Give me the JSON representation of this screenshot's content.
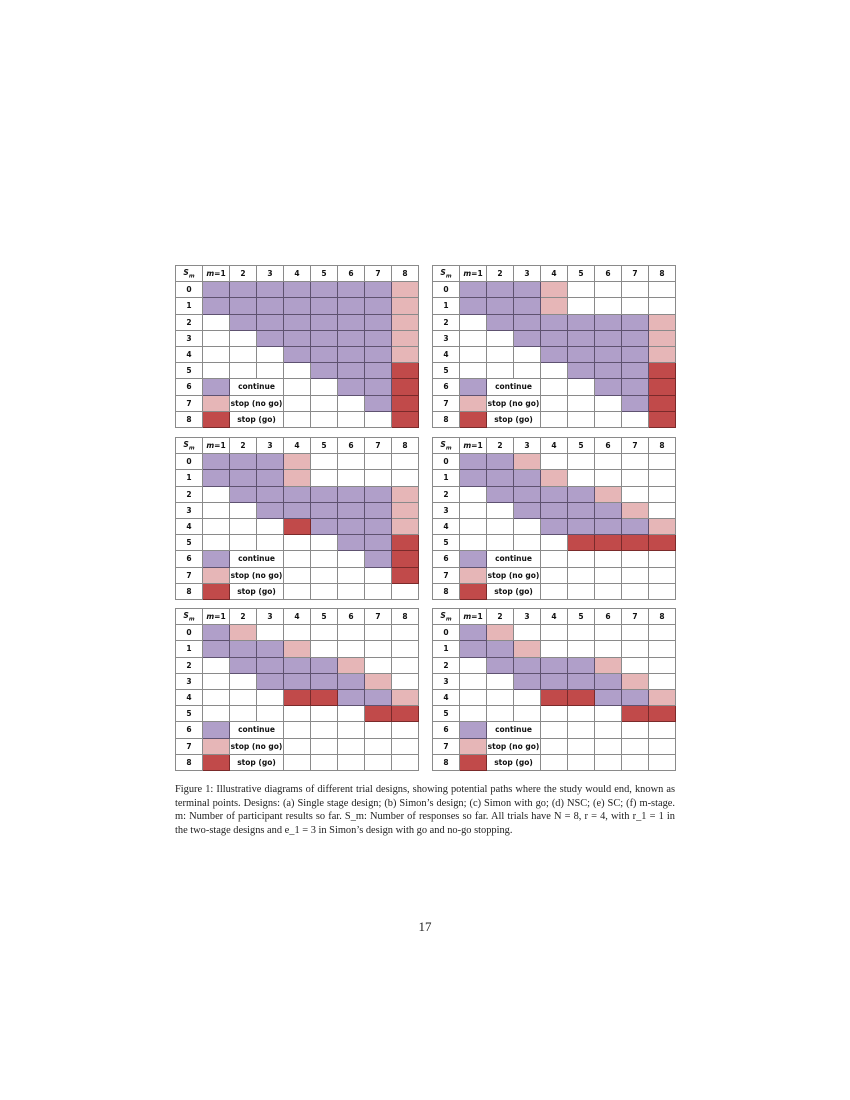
{
  "header": {
    "sm_var": "S",
    "sm_sub": "m",
    "m_var": "m",
    "m_first": "=1",
    "cols": [
      "2",
      "3",
      "4",
      "5",
      "6",
      "7",
      "8"
    ]
  },
  "row_labels": [
    "0",
    "1",
    "2",
    "3",
    "4",
    "5",
    "6",
    "7",
    "8"
  ],
  "legend": {
    "continue": "continue",
    "stop_no_go": "stop (no go)",
    "stop_go": "stop (go)"
  },
  "colors": {
    "continue": "#b09fc9",
    "stop_no_go": "#e6b6b7",
    "stop_go": "#c14a4a"
  },
  "cell_codes": {
    "C": "continue",
    "N": "stop (no go)",
    "G": "stop (go)",
    ".": "empty"
  },
  "panels": [
    {
      "id": "a",
      "rows": [
        "CCCCCCCN",
        "CCCCCCCN",
        ".CCCCCCN",
        "..CCCCCN",
        "...CCCCN",
        "....CCCG"
      ],
      "tail": [
        "..CCG",
        "...CG",
        "....G"
      ]
    },
    {
      "id": "b",
      "rows": [
        "CCCN....",
        "CCCN....",
        ".CCCCCCN",
        "..CCCCCN",
        "...CCCCN",
        "....CCCG"
      ],
      "tail": [
        "..CCG",
        "...CG",
        "....G"
      ]
    },
    {
      "id": "c",
      "rows": [
        "CCCN....",
        "CCCN....",
        ".CCCCCCN",
        "..CCCCCN",
        "...GCCCN",
        ".....CCG"
      ],
      "tail": [
        "...CG",
        "....G",
        "....."
      ]
    },
    {
      "id": "d",
      "rows": [
        "CCN.....",
        "CCCN....",
        ".CCCCN..",
        "..CCCCN.",
        "...CCCCN",
        "....GGGG"
      ],
      "tail": [
        ".....",
        ".....",
        "....."
      ]
    },
    {
      "id": "e",
      "rows": [
        "CN......",
        "CCCN....",
        ".CCCCN..",
        "..CCCCN.",
        "...GGCCN",
        "......GG"
      ],
      "tail": [
        ".....",
        ".....",
        "....."
      ]
    },
    {
      "id": "f",
      "rows": [
        "CN......",
        "CCN.....",
        ".CCCCN..",
        "..CCCCN.",
        "...GGCCN",
        "......GG"
      ],
      "tail": [
        ".....",
        ".....",
        "....."
      ]
    }
  ],
  "caption": {
    "text": "Figure 1: Illustrative diagrams of different trial designs, showing potential paths where the study would end, known as terminal points. Designs: (a) Single stage design; (b) Simon’s design; (c) Simon with go; (d) NSC; (e) SC; (f) m-stage. m: Number of participant results so far. S_m: Number of responses so far. All trials have N = 8, r = 4, with r_1 = 1 in the two-stage designs and e_1 = 3 in Simon’s design with go and no-go stopping."
  },
  "page_number": "17"
}
